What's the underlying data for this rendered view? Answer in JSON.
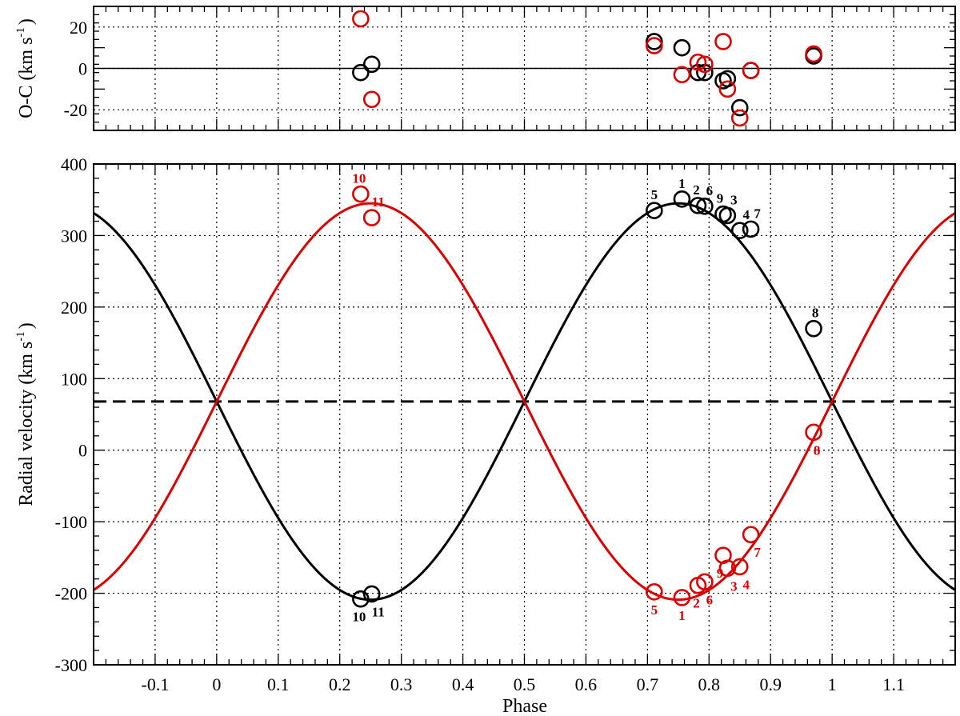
{
  "chart_data": {
    "type": "scatter",
    "xlabel": "Phase",
    "xlim": [
      -0.2,
      1.2
    ],
    "x_ticks": [
      "-0.1",
      "0",
      "0.1",
      "0.2",
      "0.3",
      "0.4",
      "0.5",
      "0.6",
      "0.7",
      "0.8",
      "0.9",
      "1",
      "1.1"
    ],
    "x_tick_values": [
      -0.1,
      0,
      0.1,
      0.2,
      0.3,
      0.4,
      0.5,
      0.6,
      0.7,
      0.8,
      0.9,
      1.0,
      1.1
    ],
    "grid": true,
    "colors": {
      "primary": "#000000",
      "secondary": "#dd0000"
    },
    "panels": [
      {
        "name": "residuals",
        "ylabel_parts": [
          "O-C (km s",
          "-1",
          ")"
        ],
        "ylim": [
          -30,
          30
        ],
        "y_ticks": [
          "20",
          "0",
          "-20"
        ],
        "y_tick_values": [
          20,
          0,
          -20
        ],
        "zero_line": 0,
        "series": [
          {
            "color": "#000000",
            "points": [
              {
                "x": 0.234,
                "y": -2
              },
              {
                "x": 0.252,
                "y": 2
              },
              {
                "x": 0.711,
                "y": 13
              },
              {
                "x": 0.756,
                "y": 10
              },
              {
                "x": 0.782,
                "y": -2
              },
              {
                "x": 0.793,
                "y": -2
              },
              {
                "x": 0.823,
                "y": -6
              },
              {
                "x": 0.83,
                "y": -5
              },
              {
                "x": 0.85,
                "y": -19
              },
              {
                "x": 0.868,
                "y": -1
              },
              {
                "x": 0.97,
                "y": 6
              }
            ]
          },
          {
            "color": "#dd0000",
            "points": [
              {
                "x": 0.234,
                "y": 24
              },
              {
                "x": 0.252,
                "y": -15
              },
              {
                "x": 0.711,
                "y": 11
              },
              {
                "x": 0.756,
                "y": -3
              },
              {
                "x": 0.782,
                "y": 3
              },
              {
                "x": 0.793,
                "y": 2
              },
              {
                "x": 0.823,
                "y": 13
              },
              {
                "x": 0.83,
                "y": -10
              },
              {
                "x": 0.85,
                "y": -24
              },
              {
                "x": 0.868,
                "y": -1
              },
              {
                "x": 0.97,
                "y": 7
              }
            ]
          }
        ]
      },
      {
        "name": "radial-velocity",
        "ylabel_parts": [
          "Radial velocity (km s",
          "-1",
          ")"
        ],
        "ylim": [
          -300,
          400
        ],
        "y_ticks": [
          "400",
          "300",
          "200",
          "100",
          "0",
          "-100",
          "-200",
          "-300"
        ],
        "y_tick_values": [
          400,
          300,
          200,
          100,
          0,
          -100,
          -200,
          -300
        ],
        "systemic_velocity": 68,
        "curves": [
          {
            "color": "#000000",
            "gamma": 68,
            "K": 277,
            "phase_sign": 1
          },
          {
            "color": "#dd0000",
            "gamma": 68,
            "K": 277,
            "phase_sign": -1
          }
        ],
        "series": [
          {
            "color": "#000000",
            "points": [
              {
                "x": 0.756,
                "y": 351,
                "label": "1",
                "label_pos": "above"
              },
              {
                "x": 0.782,
                "y": 342,
                "label": "2",
                "label_pos": "above"
              },
              {
                "x": 0.83,
                "y": 328,
                "label": "3",
                "label_pos": "above"
              },
              {
                "x": 0.85,
                "y": 307,
                "label": "4",
                "label_pos": "above"
              },
              {
                "x": 0.711,
                "y": 335,
                "label": "5",
                "label_pos": "above"
              },
              {
                "x": 0.793,
                "y": 341,
                "label": "6",
                "label_pos": "above"
              },
              {
                "x": 0.868,
                "y": 309,
                "label": "7",
                "label_pos": "above"
              },
              {
                "x": 0.97,
                "y": 170,
                "label": "8",
                "label_pos": "above"
              },
              {
                "x": 0.823,
                "y": 330,
                "label": "9",
                "label_pos": "above"
              },
              {
                "x": 0.234,
                "y": -208,
                "label": "10",
                "label_pos": "below"
              },
              {
                "x": 0.252,
                "y": -201,
                "label": "11",
                "label_pos": "below"
              }
            ]
          },
          {
            "color": "#dd0000",
            "points": [
              {
                "x": 0.756,
                "y": -206,
                "label": "1",
                "label_pos": "below"
              },
              {
                "x": 0.782,
                "y": -189,
                "label": "2",
                "label_pos": "below"
              },
              {
                "x": 0.83,
                "y": -165,
                "label": "3",
                "label_pos": "below"
              },
              {
                "x": 0.85,
                "y": -163,
                "label": "4",
                "label_pos": "below"
              },
              {
                "x": 0.711,
                "y": -198,
                "label": "5",
                "label_pos": "below"
              },
              {
                "x": 0.793,
                "y": -184,
                "label": "6",
                "label_pos": "below"
              },
              {
                "x": 0.868,
                "y": -118,
                "label": "7",
                "label_pos": "below"
              },
              {
                "x": 0.97,
                "y": 25,
                "label": "8",
                "label_pos": "below"
              },
              {
                "x": 0.823,
                "y": -147,
                "label": "9",
                "label_pos": "below"
              },
              {
                "x": 0.234,
                "y": 358,
                "label": "10",
                "label_pos": "above"
              },
              {
                "x": 0.252,
                "y": 325,
                "label": "11",
                "label_pos": "above"
              }
            ]
          }
        ]
      }
    ]
  }
}
